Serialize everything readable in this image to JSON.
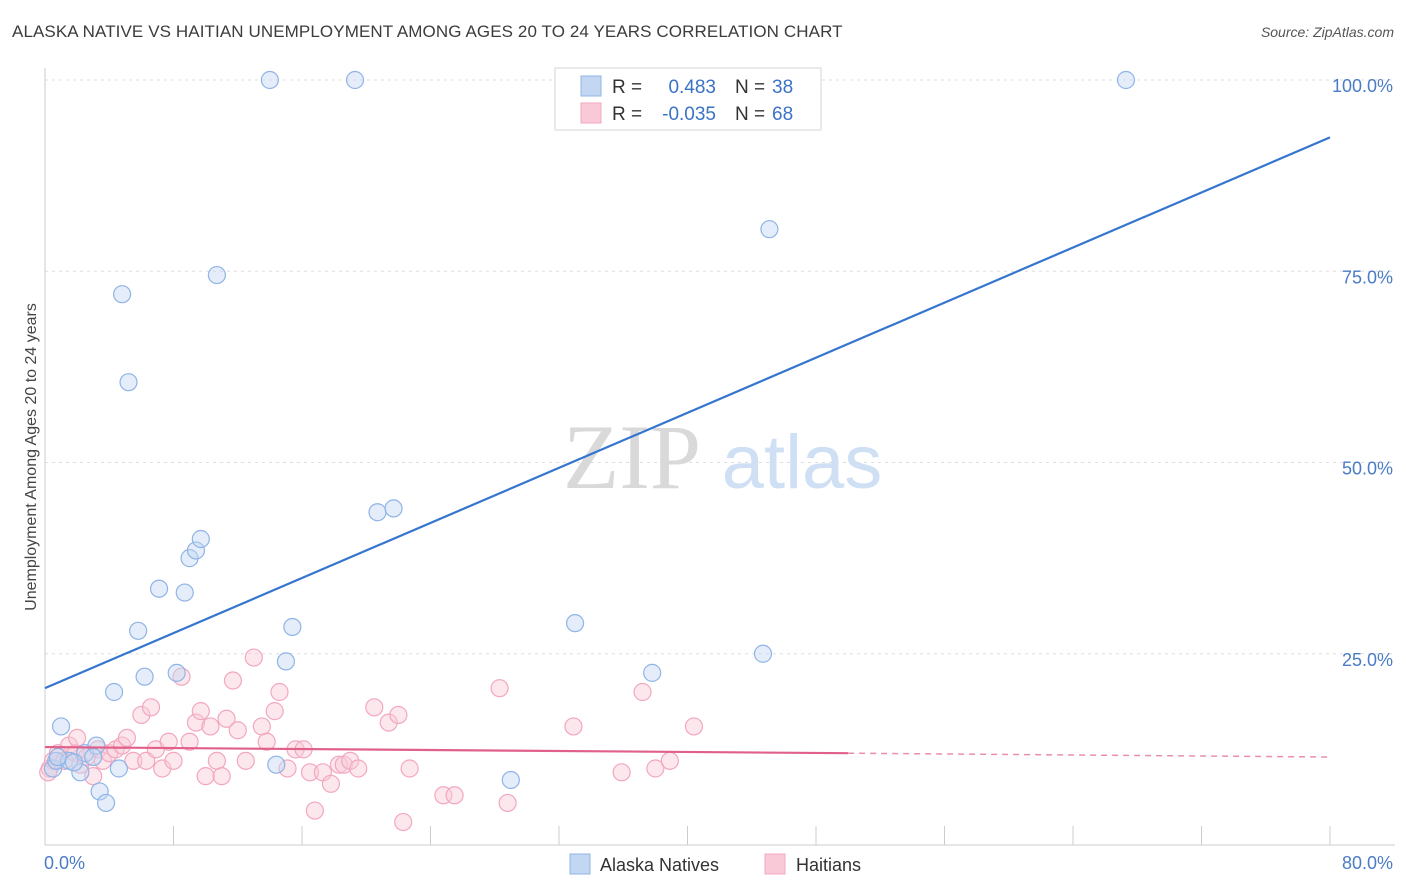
{
  "header": {
    "title": "ALASKA NATIVE VS HAITIAN UNEMPLOYMENT AMONG AGES 20 TO 24 YEARS CORRELATION CHART",
    "source": "Source: ZipAtlas.com"
  },
  "watermark": {
    "zip": "ZIP",
    "atlas": "atlas"
  },
  "chart_data": {
    "type": "scatter",
    "title": "ALASKA NATIVE VS HAITIAN UNEMPLOYMENT AMONG AGES 20 TO 24 YEARS CORRELATION CHART",
    "xlabel": "",
    "ylabel": "Unemployment Among Ages 20 to 24 years",
    "xlim": [
      0,
      80
    ],
    "ylim": [
      0,
      105
    ],
    "x_tick_labels": {
      "min": "0.0%",
      "max": "80.0%"
    },
    "y_ticks": [
      {
        "value": 25,
        "label": "25.0%"
      },
      {
        "value": 50,
        "label": "50.0%"
      },
      {
        "value": 75,
        "label": "75.0%"
      },
      {
        "value": 100,
        "label": "100.0%"
      }
    ],
    "legend_stats": [
      {
        "r_label": "R =",
        "r_value": "0.483",
        "n_label": "N =",
        "n_value": "38"
      },
      {
        "r_label": "R =",
        "r_value": "-0.035",
        "n_label": "N =",
        "n_value": "68"
      }
    ],
    "series": [
      {
        "name": "Alaska Natives",
        "color": "#8fb4e6",
        "line_color": "#3575d0",
        "trend": {
          "x0": 0,
          "y0": 20.5,
          "x1": 80,
          "y1": 92.5
        },
        "points": [
          [
            0.5,
            10
          ],
          [
            0.7,
            11
          ],
          [
            1.0,
            15.5
          ],
          [
            2.5,
            12
          ],
          [
            3.2,
            13
          ],
          [
            2.2,
            9.5
          ],
          [
            1.5,
            11
          ],
          [
            4.6,
            10
          ],
          [
            3.4,
            7
          ],
          [
            3.8,
            5.5
          ],
          [
            4.3,
            20
          ],
          [
            4.8,
            72
          ],
          [
            5.2,
            60.5
          ],
          [
            5.8,
            28
          ],
          [
            6.2,
            22
          ],
          [
            7.1,
            33.5
          ],
          [
            8.2,
            22.5
          ],
          [
            8.7,
            33
          ],
          [
            9.0,
            37.5
          ],
          [
            9.4,
            38.5
          ],
          [
            9.7,
            40
          ],
          [
            10.7,
            74.5
          ],
          [
            14.0,
            100
          ],
          [
            14.4,
            10.5
          ],
          [
            15.0,
            24
          ],
          [
            15.4,
            28.5
          ],
          [
            19.3,
            100
          ],
          [
            20.7,
            43.5
          ],
          [
            21.7,
            44
          ],
          [
            29.0,
            8.5
          ],
          [
            33.0,
            29
          ],
          [
            37.8,
            22.5
          ],
          [
            44.7,
            25
          ],
          [
            45.1,
            80.5
          ],
          [
            67.3,
            100
          ],
          [
            0.8,
            11.5
          ],
          [
            1.8,
            10.8
          ],
          [
            3.0,
            11.5
          ]
        ]
      },
      {
        "name": "Haitians",
        "color": "#f2a7c0",
        "line_color": "#e0608a",
        "trend": {
          "x0": 0,
          "y0": 12.8,
          "x1": 50,
          "y1": 12.0
        },
        "trend_dashed": {
          "x0": 50,
          "y0": 12.0,
          "x1": 80,
          "y1": 11.5
        },
        "points": [
          [
            0.3,
            10
          ],
          [
            0.5,
            11
          ],
          [
            0.8,
            12
          ],
          [
            1.2,
            11
          ],
          [
            1.5,
            13
          ],
          [
            1.9,
            12
          ],
          [
            2.2,
            10.5
          ],
          [
            2.6,
            11.5
          ],
          [
            3.0,
            9
          ],
          [
            3.3,
            12.5
          ],
          [
            3.6,
            11
          ],
          [
            4.0,
            12
          ],
          [
            4.4,
            12.5
          ],
          [
            4.8,
            13
          ],
          [
            5.1,
            14
          ],
          [
            5.5,
            11
          ],
          [
            6.0,
            17
          ],
          [
            6.3,
            11
          ],
          [
            6.6,
            18
          ],
          [
            6.9,
            12.5
          ],
          [
            7.3,
            10
          ],
          [
            7.7,
            13.5
          ],
          [
            8.0,
            11
          ],
          [
            8.5,
            22
          ],
          [
            9.0,
            13.5
          ],
          [
            9.4,
            16
          ],
          [
            9.7,
            17.5
          ],
          [
            10.0,
            9
          ],
          [
            10.3,
            15.5
          ],
          [
            10.7,
            11
          ],
          [
            11.0,
            9
          ],
          [
            11.3,
            16.5
          ],
          [
            11.7,
            21.5
          ],
          [
            12.0,
            15
          ],
          [
            12.5,
            11
          ],
          [
            13.0,
            24.5
          ],
          [
            13.5,
            15.5
          ],
          [
            13.8,
            13.5
          ],
          [
            14.3,
            17.5
          ],
          [
            14.6,
            20
          ],
          [
            15.1,
            10
          ],
          [
            15.6,
            12.5
          ],
          [
            16.1,
            12.5
          ],
          [
            16.5,
            9.5
          ],
          [
            16.8,
            4.5
          ],
          [
            17.3,
            9.5
          ],
          [
            17.8,
            8
          ],
          [
            18.3,
            10.5
          ],
          [
            18.6,
            10.5
          ],
          [
            19.0,
            11
          ],
          [
            19.5,
            10
          ],
          [
            20.5,
            18
          ],
          [
            21.4,
            16
          ],
          [
            22.0,
            17
          ],
          [
            22.3,
            3
          ],
          [
            22.7,
            10
          ],
          [
            24.8,
            6.5
          ],
          [
            25.5,
            6.5
          ],
          [
            28.3,
            20.5
          ],
          [
            28.8,
            5.5
          ],
          [
            32.9,
            15.5
          ],
          [
            35.9,
            9.5
          ],
          [
            37.2,
            20
          ],
          [
            38.0,
            10
          ],
          [
            38.9,
            11
          ],
          [
            40.4,
            15.5
          ],
          [
            2.0,
            14
          ],
          [
            0.2,
            9.5
          ]
        ]
      }
    ]
  }
}
